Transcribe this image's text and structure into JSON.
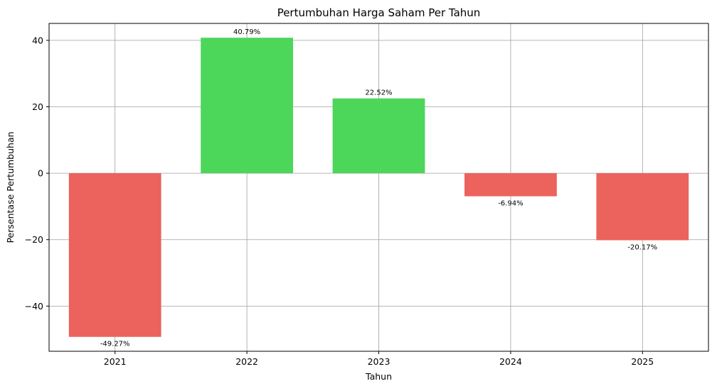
{
  "chart_data": {
    "type": "bar",
    "title": "Pertumbuhan Harga Saham Per Tahun",
    "xlabel": "Tahun",
    "ylabel": "Persentase Pertumbuhan",
    "categories": [
      "2021",
      "2022",
      "2023",
      "2024",
      "2025"
    ],
    "values": [
      -49.27,
      40.79,
      22.52,
      -6.94,
      -20.17
    ],
    "data_labels": [
      "-49.27%",
      "40.79%",
      "22.52%",
      "-6.94%",
      "-20.17%"
    ],
    "ylim": [
      -53.6,
      45.1
    ],
    "yticks": [
      -40,
      -20,
      0,
      20,
      40
    ],
    "ytick_labels": [
      "−40",
      "−20",
      "0",
      "20",
      "40"
    ],
    "grid": true,
    "colors": {
      "positive": "#4cd65a",
      "negative": "#ec625d",
      "grid": "#a0a0a0",
      "axis": "#000000"
    }
  }
}
